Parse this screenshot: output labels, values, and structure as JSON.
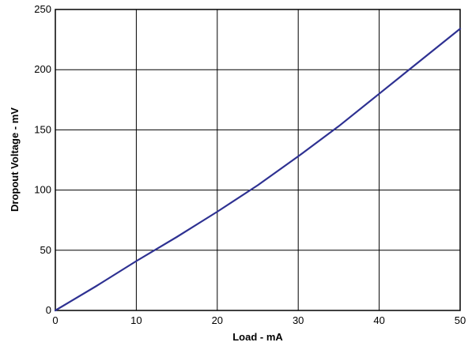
{
  "chart_data": {
    "type": "line",
    "title": "",
    "xlabel": "Load - mA",
    "ylabel": "Dropout Voltage - mV",
    "xlim": [
      0,
      50
    ],
    "ylim": [
      0,
      250
    ],
    "xticks": [
      0,
      10,
      20,
      30,
      40,
      50
    ],
    "yticks": [
      0,
      50,
      100,
      150,
      200,
      250
    ],
    "grid": true,
    "series_color": "#2e3192",
    "series": [
      {
        "x": [
          0,
          5,
          10,
          15,
          20,
          25,
          30,
          35,
          40,
          45,
          50
        ],
        "values": [
          0,
          20,
          41,
          61,
          82,
          104,
          128,
          153,
          180,
          207,
          234
        ]
      }
    ]
  }
}
